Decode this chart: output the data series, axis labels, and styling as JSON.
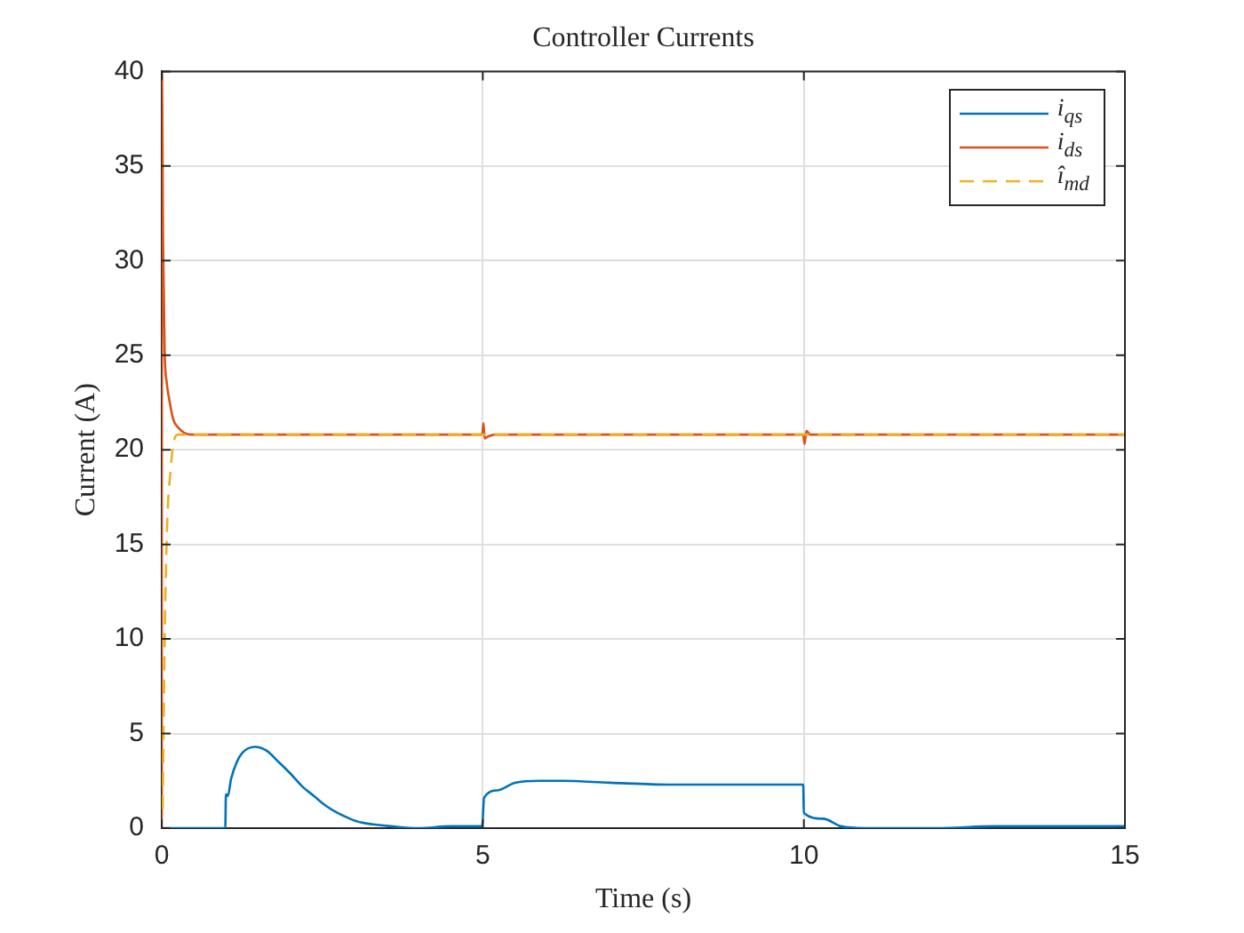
{
  "chart_data": {
    "type": "line",
    "title": "Controller Currents",
    "xlabel": "Time (s)",
    "ylabel": "Current (A)",
    "xlim": [
      0,
      15
    ],
    "xticks": [
      0,
      5,
      10,
      15
    ],
    "ylim": [
      0,
      40
    ],
    "yticks": [
      0,
      5,
      10,
      15,
      20,
      25,
      30,
      35,
      40
    ],
    "grid": true,
    "legend": "top right",
    "series": [
      {
        "name": "i$_{qs}$",
        "color": "#0072bd",
        "x": [
          0,
          0.99,
          1.0,
          1.03,
          1.08,
          1.17,
          1.26,
          1.45,
          1.63,
          1.82,
          2.0,
          2.19,
          2.37,
          2.55,
          2.74,
          2.93,
          3.1,
          3.29,
          3.57,
          4.0,
          4.5,
          4.99,
          5.02,
          5.23,
          5.5,
          5.88,
          6.25,
          6.98,
          7.9,
          9.0,
          9.99,
          10.0,
          10.3,
          10.58,
          10.95,
          11.32,
          12.06,
          12.98,
          14.0,
          15.0
        ],
        "values": [
          0,
          0,
          1.8,
          1.7,
          2.6,
          3.5,
          4.0,
          4.3,
          4.1,
          3.5,
          2.9,
          2.2,
          1.7,
          1.2,
          0.8,
          0.5,
          0.3,
          0.2,
          0.1,
          0,
          0.1,
          0.1,
          1.6,
          2.0,
          2.4,
          2.5,
          2.5,
          2.4,
          2.3,
          2.3,
          2.3,
          0.8,
          0.5,
          0.1,
          0,
          0,
          0,
          0.1,
          0.1,
          0.1
        ]
      },
      {
        "name": "i$_{ds}$",
        "color": "#d95319",
        "x": [
          0,
          0.005,
          0.02,
          0.045,
          0.08,
          0.11,
          0.18,
          0.25,
          0.35,
          0.5,
          4.99,
          5.01,
          5.03,
          5.08,
          5.2,
          9.99,
          10.01,
          10.04,
          10.1,
          15.0
        ],
        "values": [
          0,
          40,
          31.4,
          25.3,
          23.5,
          22.8,
          21.6,
          21.2,
          20.9,
          20.8,
          20.8,
          21.4,
          20.6,
          20.7,
          20.8,
          20.8,
          20.3,
          21.0,
          20.8,
          20.8
        ]
      },
      {
        "name": "î$_{md}$",
        "color": "#edb120",
        "line_style": "dashed",
        "x": [
          0.015,
          0.045,
          0.083,
          0.14,
          0.18,
          0.25,
          15.0
        ],
        "values": [
          1,
          9.7,
          15.9,
          19.0,
          20.3,
          20.8,
          20.8
        ]
      }
    ]
  }
}
